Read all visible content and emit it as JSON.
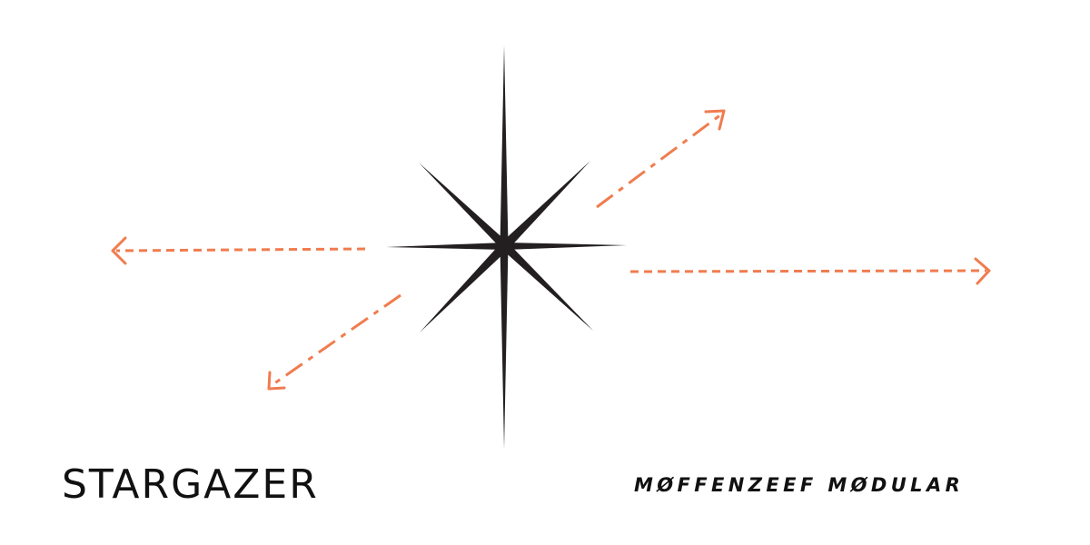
{
  "brand": {
    "product_name": "STARGAZER",
    "maker_name": "MØFFENZEEF MØDULAR"
  },
  "colors": {
    "star": "#231f20",
    "arrow": "#f07c4f",
    "text": "#111111",
    "background": "#ffffff"
  },
  "graphic": {
    "center_icon": "eight-point-star-icon",
    "arrow_icons": [
      "arrow-left-icon",
      "arrow-right-icon",
      "arrow-up-right-icon",
      "arrow-down-left-icon"
    ]
  }
}
